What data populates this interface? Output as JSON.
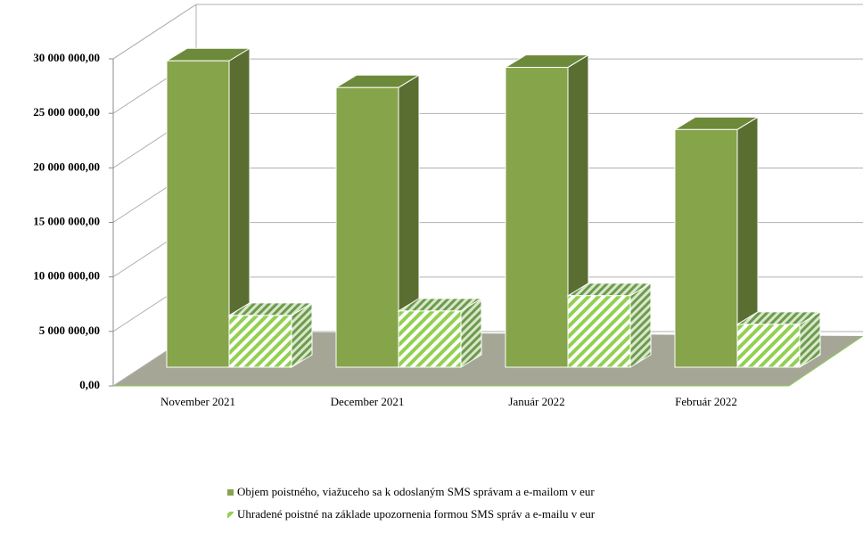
{
  "chart_data": {
    "type": "bar3d",
    "categories": [
      "November 2021",
      "December 2021",
      "Január 2022",
      "Február 2022"
    ],
    "series": [
      {
        "name": "Objem poistného, viažuceho sa k odoslaným SMS správam a e-mailom v eur",
        "color": "#86a44a",
        "values": [
          28100000,
          25650000,
          27500000,
          21800000
        ]
      },
      {
        "name": "Uhradené poistné na základe upozornenia formou SMS správ a e-mailu v eur",
        "color": "#92d050",
        "values": [
          4750000,
          5160000,
          6560000,
          3930000
        ]
      }
    ],
    "ylim": [
      0,
      30000000
    ],
    "yticks": [
      {
        "value": 0,
        "label": "0,00"
      },
      {
        "value": 5000000,
        "label": "5 000 000,00"
      },
      {
        "value": 10000000,
        "label": "10 000 000,00"
      },
      {
        "value": 15000000,
        "label": "15 000 000,00"
      },
      {
        "value": 20000000,
        "label": "20 000 000,00"
      },
      {
        "value": 25000000,
        "label": "25 000 000,00"
      },
      {
        "value": 30000000,
        "label": "30 000 000,00"
      }
    ],
    "grid": true
  }
}
